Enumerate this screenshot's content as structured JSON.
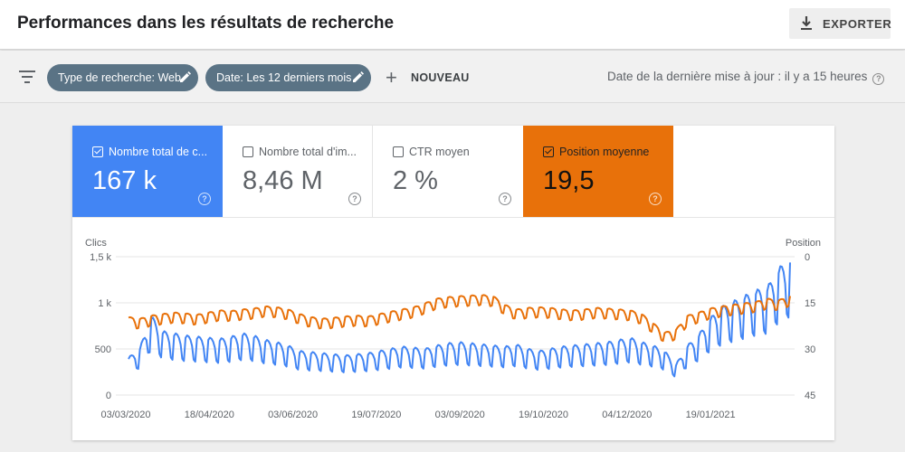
{
  "header": {
    "title": "Performances dans les résultats de recherche",
    "export_label": "EXPORTER",
    "export_icon": "download-icon"
  },
  "filters": {
    "filter_icon": "filter-list-icon",
    "chips": [
      {
        "label": "Type de recherche: Web",
        "icon": "pencil-icon"
      },
      {
        "label": "Date: Les 12 derniers mois",
        "icon": "pencil-icon"
      }
    ],
    "new_label": "NOUVEAU",
    "last_update": "Date de la dernière mise à jour : il y a 15 heures",
    "help_icon": "help-circle-icon"
  },
  "metrics": [
    {
      "label": "Nombre total de c...",
      "value": "167 k",
      "checked": true,
      "color": "#4285f4"
    },
    {
      "label": "Nombre total d'im...",
      "value": "8,46 M",
      "checked": false,
      "color": "#ffffff"
    },
    {
      "label": "CTR moyen",
      "value": "2 %",
      "checked": false,
      "color": "#ffffff"
    },
    {
      "label": "Position moyenne",
      "value": "19,5",
      "checked": true,
      "color": "#e8710a"
    }
  ],
  "chart_data": {
    "type": "line",
    "left_axis_label": "Clics",
    "right_axis_label": "Position",
    "y_left_ticks": [
      "1,5 k",
      "1 k",
      "500",
      "0"
    ],
    "y_right_ticks": [
      "0",
      "15",
      "30",
      "45"
    ],
    "y_left_range": [
      0,
      1500
    ],
    "y_right_range": [
      45,
      0
    ],
    "x_tick_labels": [
      "03/03/2020",
      "18/04/2020",
      "03/06/2020",
      "19/07/2020",
      "03/09/2020",
      "19/10/2020",
      "04/12/2020",
      "19/01/2021"
    ],
    "grid": true,
    "series": [
      {
        "name": "Nombre total de clics",
        "color": "#4285f4",
        "axis": "left",
        "weekly_values": [
          340,
          430,
          720,
          580,
          560,
          540,
          530,
          520,
          510,
          530,
          560,
          540,
          500,
          480,
          450,
          400,
          390,
          380,
          370,
          360,
          370,
          380,
          400,
          420,
          440,
          430,
          420,
          450,
          470,
          480,
          470,
          460,
          450,
          440,
          460,
          420,
          400,
          420,
          440,
          450,
          460,
          470,
          480,
          500,
          520,
          480,
          450,
          400,
          280,
          450,
          550,
          700,
          800,
          850,
          900,
          950,
          980,
          1150,
          1250
        ]
      },
      {
        "name": "Position moyenne",
        "color": "#e8710a",
        "axis": "right",
        "weekly_values": [
          21.0,
          21.5,
          20.5,
          20.0,
          19.5,
          19.8,
          20.2,
          19.5,
          18.8,
          19.0,
          18.5,
          18.2,
          17.5,
          17.8,
          18.5,
          20.0,
          21.0,
          21.5,
          21.2,
          20.8,
          20.5,
          20.8,
          20.0,
          19.2,
          18.5,
          17.8,
          16.5,
          15.0,
          14.5,
          14.2,
          14.0,
          13.8,
          14.2,
          17.0,
          18.5,
          18.0,
          17.8,
          18.0,
          18.5,
          18.8,
          18.5,
          18.0,
          18.2,
          18.5,
          18.8,
          20.0,
          23.0,
          26.0,
          25.0,
          20.5,
          19.5,
          18.2,
          17.5,
          17.0,
          16.5,
          16.0,
          15.0,
          15.5,
          14.0
        ]
      }
    ]
  }
}
